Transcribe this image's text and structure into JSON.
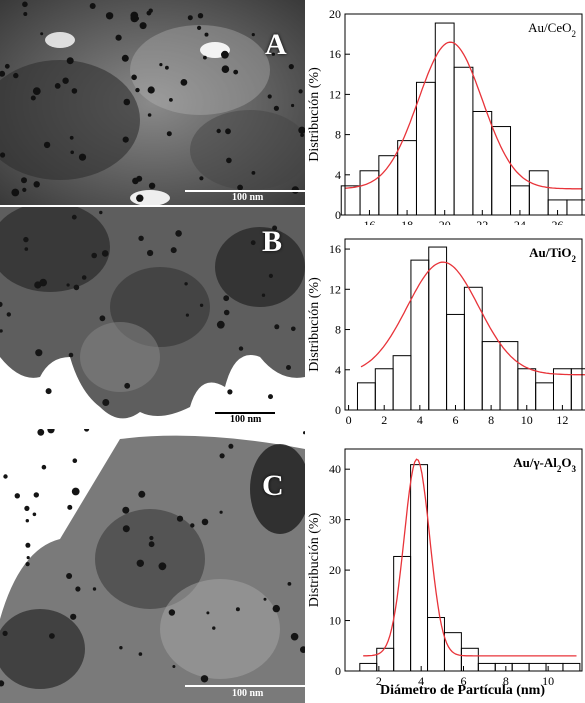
{
  "figure": {
    "xlabel": "Diámetro de Partícula (nm)"
  },
  "panels": [
    {
      "letter": "A",
      "scale_label": "100 nm"
    },
    {
      "letter": "B",
      "scale_label": "100 nm"
    },
    {
      "letter": "C",
      "scale_label": "100 nm"
    }
  ],
  "colors": {
    "fit": "#e8343a",
    "bars": "#000000",
    "background": "#ffffff"
  },
  "chart_data": [
    {
      "type": "bar",
      "title": "Au/CeO2",
      "title_parts": [
        "Au/CeO",
        "2",
        ""
      ],
      "ylabel": "Distribución (%)",
      "xlabel": "",
      "xlim": [
        14.7,
        27.3
      ],
      "ylim": [
        0,
        20
      ],
      "xticks": [
        16,
        18,
        20,
        22,
        24,
        26
      ],
      "yticks": [
        0,
        4,
        8,
        12,
        16,
        20
      ],
      "bin_width": 1,
      "x": [
        15,
        16,
        17,
        18,
        19,
        20,
        21,
        22,
        23,
        24,
        25,
        26,
        27
      ],
      "values": [
        2.9,
        4.4,
        5.9,
        7.4,
        13.2,
        19.1,
        14.7,
        10.3,
        8.8,
        2.9,
        4.4,
        1.5,
        1.5
      ],
      "fit": {
        "type": "gaussian",
        "baseline": 2.6,
        "amplitude": 14.6,
        "center": 20.3,
        "sigma": 1.7
      },
      "grid": false
    },
    {
      "type": "bar",
      "title": "Au/TiO2",
      "title_parts": [
        "Au/TiO",
        "2",
        ""
      ],
      "ylabel": "Distribución (%)",
      "xlabel": "",
      "xlim": [
        -0.2,
        13.1
      ],
      "ylim": [
        0,
        17
      ],
      "xticks": [
        0,
        2,
        4,
        6,
        8,
        10,
        12
      ],
      "yticks": [
        0,
        4,
        8,
        12,
        16
      ],
      "bin_width": 1,
      "x": [
        1,
        2,
        3,
        4,
        5,
        6,
        7,
        8,
        9,
        10,
        11,
        12,
        13
      ],
      "values": [
        2.7,
        4.1,
        5.4,
        14.9,
        16.2,
        9.5,
        12.2,
        6.8,
        6.8,
        4.1,
        2.7,
        4.1,
        4.1
      ],
      "fit": {
        "type": "gaussian",
        "baseline": 3.5,
        "amplitude": 11.2,
        "center": 5.3,
        "sigma": 2.0
      },
      "grid": false
    },
    {
      "type": "bar",
      "title": "Au/γ-Al2O3",
      "title_parts": [
        "Au/γ-Al",
        "2",
        "O",
        "3",
        ""
      ],
      "ylabel": "Distribución (%)",
      "xlabel": "Diámetro de Partícula (nm)",
      "xlim": [
        0.4,
        11.6
      ],
      "ylim": [
        0,
        44
      ],
      "xticks": [
        2,
        4,
        6,
        8,
        10
      ],
      "yticks": [
        0,
        10,
        20,
        30,
        40
      ],
      "bin_width": 0.8,
      "x": [
        1.5,
        2.3,
        3.1,
        3.9,
        4.7,
        5.5,
        6.3,
        7.1,
        7.9,
        8.7,
        9.5,
        10.3,
        11.1
      ],
      "values": [
        1.5,
        4.5,
        22.7,
        40.9,
        10.6,
        7.6,
        4.5,
        1.5,
        1.5,
        1.5,
        1.5,
        1.5,
        1.5
      ],
      "fit": {
        "type": "gaussian",
        "baseline": 3.0,
        "amplitude": 39.0,
        "center": 3.8,
        "sigma": 0.6
      },
      "grid": false
    }
  ]
}
